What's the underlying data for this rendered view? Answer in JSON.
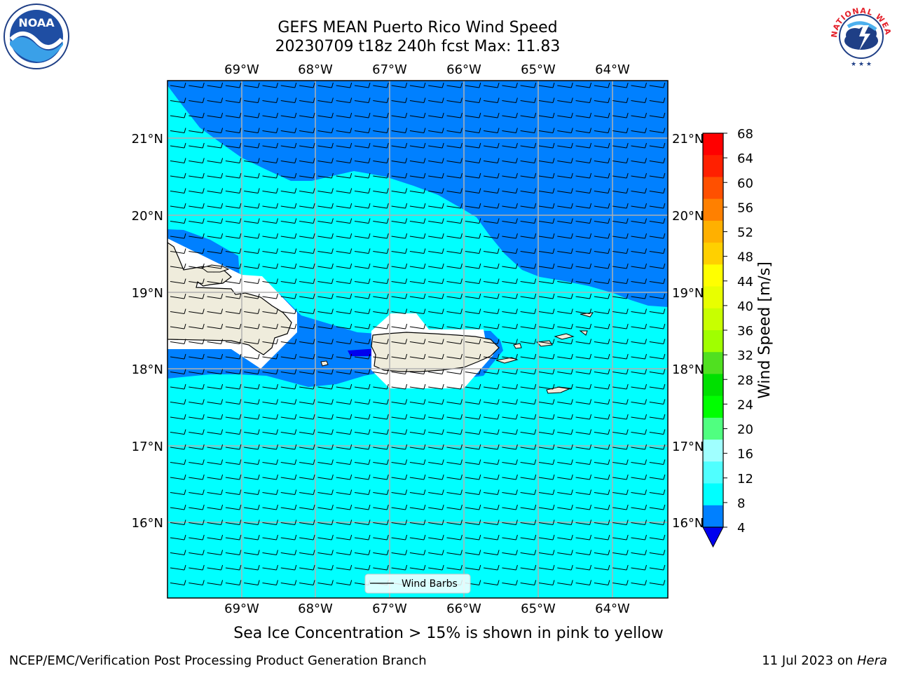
{
  "title": {
    "line1": "GEFS MEAN Puerto Rico Wind Speed",
    "line2": "20230709 t18z 240h fcst   Max: 11.83"
  },
  "map": {
    "lon_labels": [
      "69°W",
      "68°W",
      "67°W",
      "66°W",
      "65°W",
      "64°W"
    ],
    "lat_labels": [
      "21°N",
      "20°N",
      "19°N",
      "18°N",
      "17°N",
      "16°N"
    ],
    "legend_label": "Wind Barbs",
    "colors": {
      "low_4_8": "#0080ff",
      "mid_8_12": "#00ffff",
      "below_4": "#0000ee",
      "land": "#efecdc",
      "grid": "#b0b0b0"
    }
  },
  "colorbar": {
    "label": "Wind Speed [m/s]",
    "ticks": [
      "68",
      "64",
      "60",
      "56",
      "52",
      "48",
      "44",
      "40",
      "36",
      "32",
      "28",
      "24",
      "20",
      "16",
      "12",
      "8",
      "4"
    ],
    "colors": [
      "#ff0000",
      "#ff2000",
      "#ff5000",
      "#ff8000",
      "#ffb000",
      "#ffd000",
      "#ffff00",
      "#e8ff00",
      "#c8ff00",
      "#a0ff00",
      "#50e020",
      "#00e000",
      "#00ff00",
      "#50ff80",
      "#a0ffff",
      "#50ffff",
      "#00ffff",
      "#0080ff"
    ],
    "under_color": "#0000ee"
  },
  "note": "Sea Ice Concentration > 15% is shown in pink to yellow",
  "footer": {
    "left": "NCEP/EMC/Verification Post Processing Product Generation Branch",
    "date": "11 Jul 2023 on ",
    "machine": "Hera"
  },
  "logos": {
    "noaa_text": "NOAA",
    "nws_text": "NATIONAL WEATHER SERVICE"
  }
}
